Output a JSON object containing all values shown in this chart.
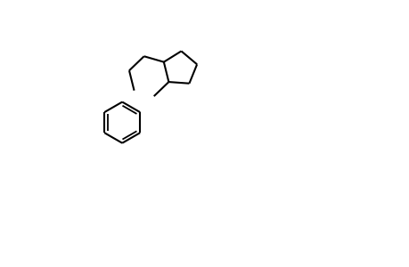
{
  "bg_color": "#ffffff",
  "line_color": "#000000",
  "gray_color": "#888888",
  "figsize": [
    4.6,
    3.0
  ],
  "dpi": 100,
  "lw": 1.5,
  "font_size": 9,
  "font_size_small": 8
}
